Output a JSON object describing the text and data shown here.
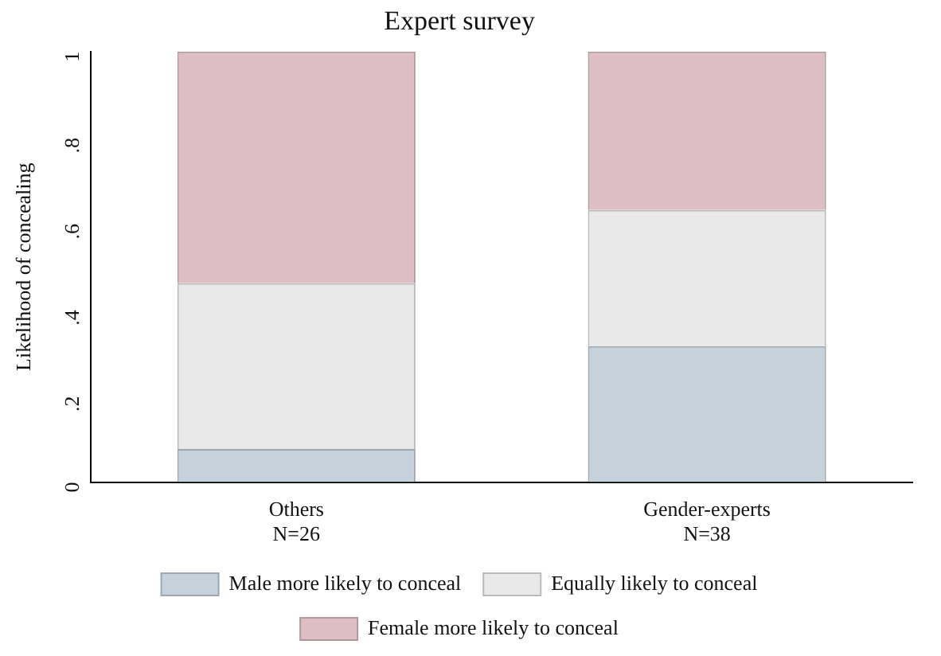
{
  "chart_data": {
    "type": "bar",
    "title": "Expert survey",
    "ylabel": "Likelihood of concealing",
    "categories": [
      "Others\nN=26",
      "Gender-experts\nN=38"
    ],
    "stacked": true,
    "grid": false,
    "legend": "bottom",
    "ylim": [
      0,
      1
    ],
    "yticks": [
      0,
      {
        "value": 0.2,
        "label": ".2"
      },
      {
        "value": 0.4,
        "label": ".4"
      },
      {
        "value": 0.6,
        "label": ".6"
      },
      {
        "value": 0.8,
        "label": ".8"
      },
      1
    ],
    "series": [
      {
        "name": "Male more likely to conceal",
        "color": "#c5d1db",
        "values": [
          0.077,
          0.316
        ]
      },
      {
        "name": "Equally likely to conceal",
        "color": "#e9e9e9",
        "values": [
          0.385,
          0.316
        ]
      },
      {
        "name": "Female more likely to conceal",
        "color": "#dcbec4",
        "values": [
          0.538,
          0.368
        ]
      }
    ]
  }
}
